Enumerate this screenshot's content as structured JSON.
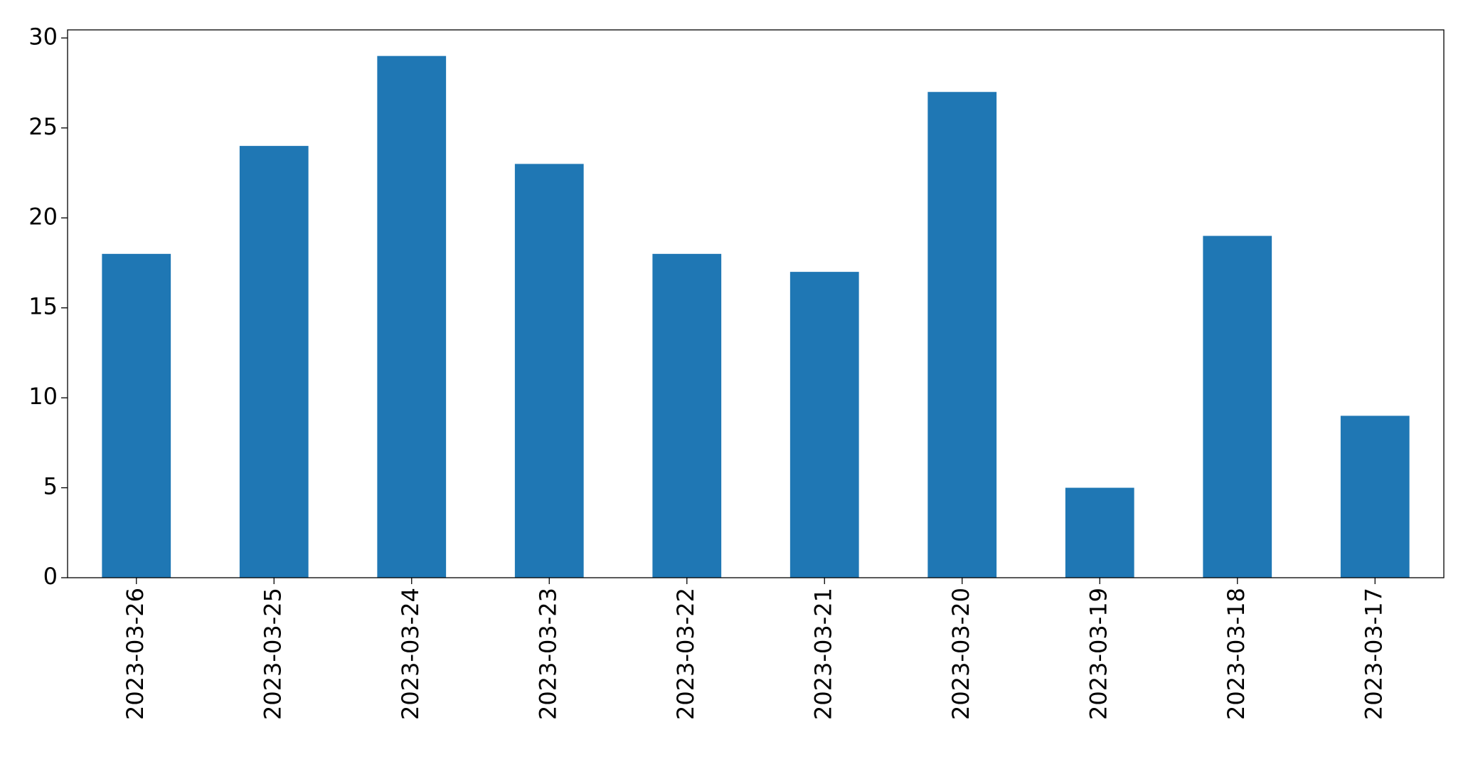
{
  "chart_data": {
    "type": "bar",
    "categories": [
      "2023-03-26",
      "2023-03-25",
      "2023-03-24",
      "2023-03-23",
      "2023-03-22",
      "2023-03-21",
      "2023-03-20",
      "2023-03-19",
      "2023-03-18",
      "2023-03-17"
    ],
    "values": [
      18,
      24,
      29,
      23,
      18,
      17,
      27,
      5,
      19,
      9
    ],
    "color": "#1f77b4",
    "ylim": [
      0,
      30.45
    ],
    "yticks": [
      0,
      5,
      10,
      15,
      20,
      25,
      30
    ],
    "grid": false
  }
}
